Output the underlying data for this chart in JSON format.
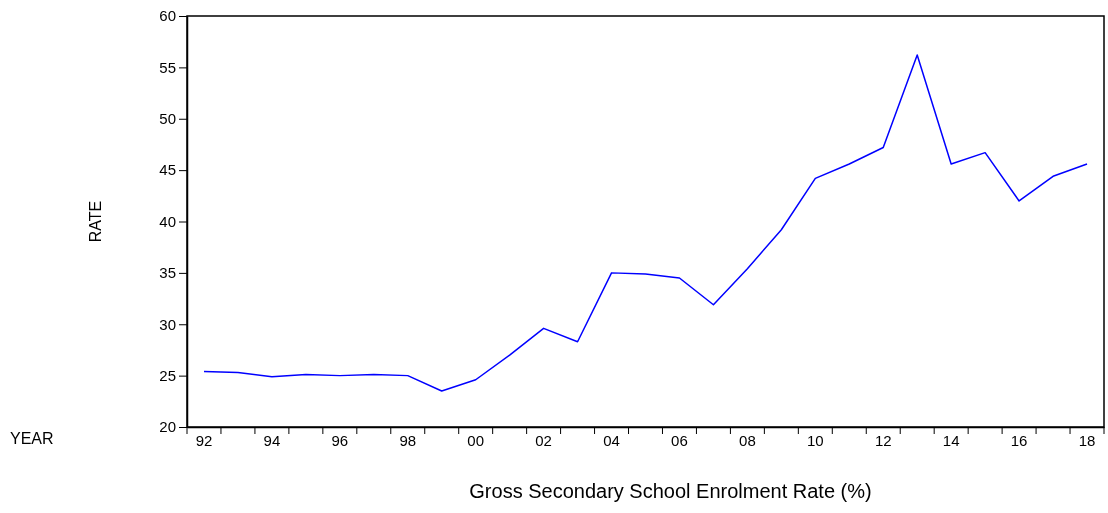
{
  "chart_data": {
    "type": "line",
    "xlabel": "Gross Secondary School Enrolment Rate (%)",
    "ylabel": "RATE",
    "annotations": [
      "YEAR"
    ],
    "categories": [
      "92",
      null,
      "94",
      null,
      "96",
      null,
      "98",
      null,
      "00",
      null,
      "02",
      null,
      "04",
      null,
      "06",
      null,
      "08",
      null,
      "10",
      null,
      "12",
      null,
      "14",
      null,
      "16",
      null,
      "18"
    ],
    "series": [
      {
        "color": "#0000ff",
        "values": [
          25.4,
          25.3,
          24.9,
          25.1,
          25.0,
          25.1,
          25.0,
          23.5,
          24.6,
          27.0,
          29.6,
          28.3,
          35.0,
          34.9,
          34.5,
          31.9,
          35.4,
          39.2,
          44.2,
          45.6,
          47.2,
          56.2,
          45.6,
          46.7,
          42.0,
          44.4,
          45.6
        ]
      }
    ],
    "ylim": [
      20,
      60
    ],
    "yticks": [
      20,
      25,
      30,
      35,
      40,
      45,
      50,
      55,
      60
    ],
    "grid": false,
    "marker": "none",
    "line_style": "solid"
  }
}
